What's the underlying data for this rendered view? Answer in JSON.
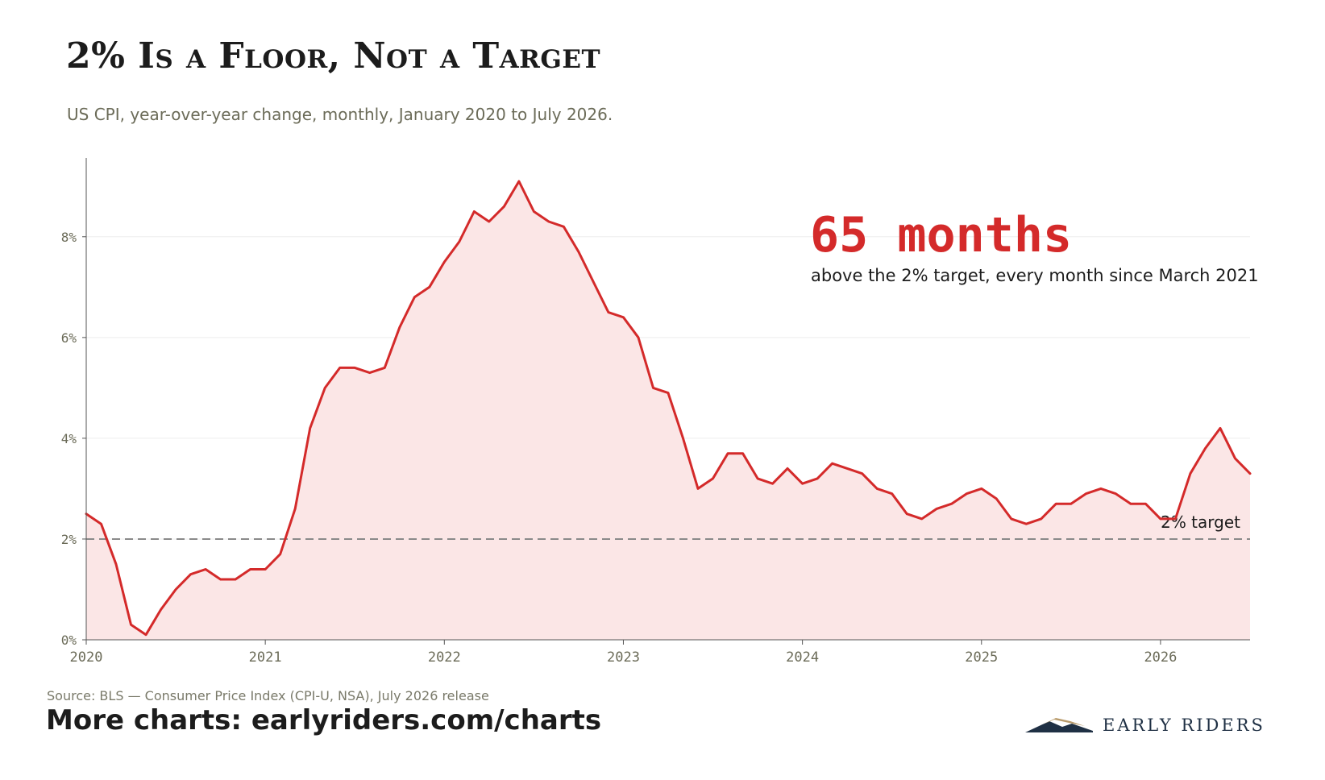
{
  "header": {
    "title": "2% Is a Floor, Not a Target",
    "subtitle": "US CPI, year-over-year change, monthly, January 2020 to July 2026."
  },
  "callout": {
    "value": "65 months",
    "text": "above the 2% target, every month since March 2021"
  },
  "footer": {
    "source": "Source: BLS — Consumer Price Index (CPI-U, NSA), July 2026 release",
    "more": "More charts: earlyriders.com/charts",
    "logo_text": "EARLY RIDERS"
  },
  "colors": {
    "line": "#d42a2a",
    "fill": "#fbe6e6",
    "target_line": "#8a8a8a",
    "axis": "#555555",
    "tick_text": "#6b6b58",
    "logo_navy": "#1f3044",
    "logo_gold": "#b89a6a"
  },
  "chart_data": {
    "type": "area",
    "x_start": "2020-01",
    "x_end": "2026-07",
    "xticks": [
      "2020",
      "2021",
      "2022",
      "2023",
      "2024",
      "2025",
      "2026"
    ],
    "yticks": [
      "0%",
      "2%",
      "4%",
      "6%",
      "8%"
    ],
    "ylim": [
      0,
      9.5
    ],
    "grid": "horizontal",
    "reference_line": {
      "value": 2,
      "label": "2% target",
      "style": "dashed"
    },
    "series": [
      {
        "values": [
          2.5,
          2.3,
          1.5,
          0.3,
          0.1,
          0.6,
          1.0,
          1.3,
          1.4,
          1.2,
          1.2,
          1.4,
          1.4,
          1.7,
          2.6,
          4.2,
          5.0,
          5.4,
          5.4,
          5.3,
          5.4,
          6.2,
          6.8,
          7.0,
          7.5,
          7.9,
          8.5,
          8.3,
          8.6,
          9.1,
          8.5,
          8.3,
          8.2,
          7.7,
          7.1,
          6.5,
          6.4,
          6.0,
          5.0,
          4.9,
          4.0,
          3.0,
          3.2,
          3.7,
          3.7,
          3.2,
          3.1,
          3.4,
          3.1,
          3.2,
          3.5,
          3.4,
          3.3,
          3.0,
          2.9,
          2.5,
          2.4,
          2.6,
          2.7,
          2.9,
          3.0,
          2.8,
          2.4,
          2.3,
          2.4,
          2.7,
          2.7,
          2.9,
          3.0,
          2.9,
          2.7,
          2.7,
          2.4,
          2.4,
          3.3,
          3.8,
          4.2,
          3.6,
          3.3
        ]
      }
    ]
  }
}
